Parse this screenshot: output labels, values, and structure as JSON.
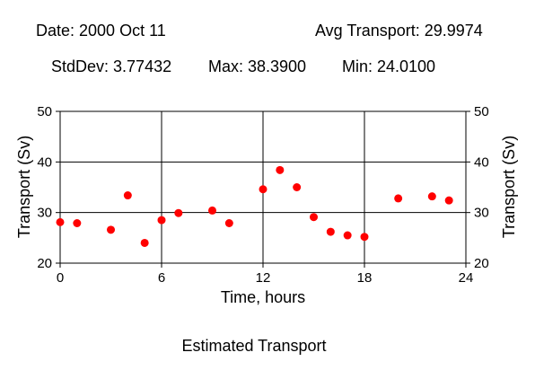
{
  "header": {
    "date_label": "Date: 2000 Oct 11",
    "avg_label": "Avg Transport: 29.9974",
    "stddev_label": "StdDev: 3.77432",
    "max_label": "Max: 38.3900",
    "min_label": "Min: 24.0100"
  },
  "footer": {
    "caption": "Estimated Transport"
  },
  "chart_data": {
    "type": "scatter",
    "title": "",
    "xlabel": "Time, hours",
    "ylabel": "Transport (Sv)",
    "ylabel_right": "Transport (Sv)",
    "xlim": [
      0,
      24
    ],
    "ylim": [
      20,
      50
    ],
    "xticks": [
      0,
      6,
      12,
      18,
      24
    ],
    "yticks": [
      20,
      30,
      40,
      50
    ],
    "grid": true,
    "marker_color": "#ff0000",
    "series": [
      {
        "x": [
          0,
          1,
          3,
          4,
          5,
          6,
          7,
          9,
          10,
          12,
          13,
          14,
          15,
          16,
          17,
          18,
          20,
          22,
          23
        ],
        "y": [
          28.1,
          27.9,
          26.6,
          33.4,
          24.0,
          28.5,
          29.9,
          30.4,
          27.9,
          34.6,
          38.4,
          35.0,
          29.1,
          26.2,
          25.5,
          25.2,
          32.8,
          33.2,
          32.4
        ]
      }
    ]
  }
}
